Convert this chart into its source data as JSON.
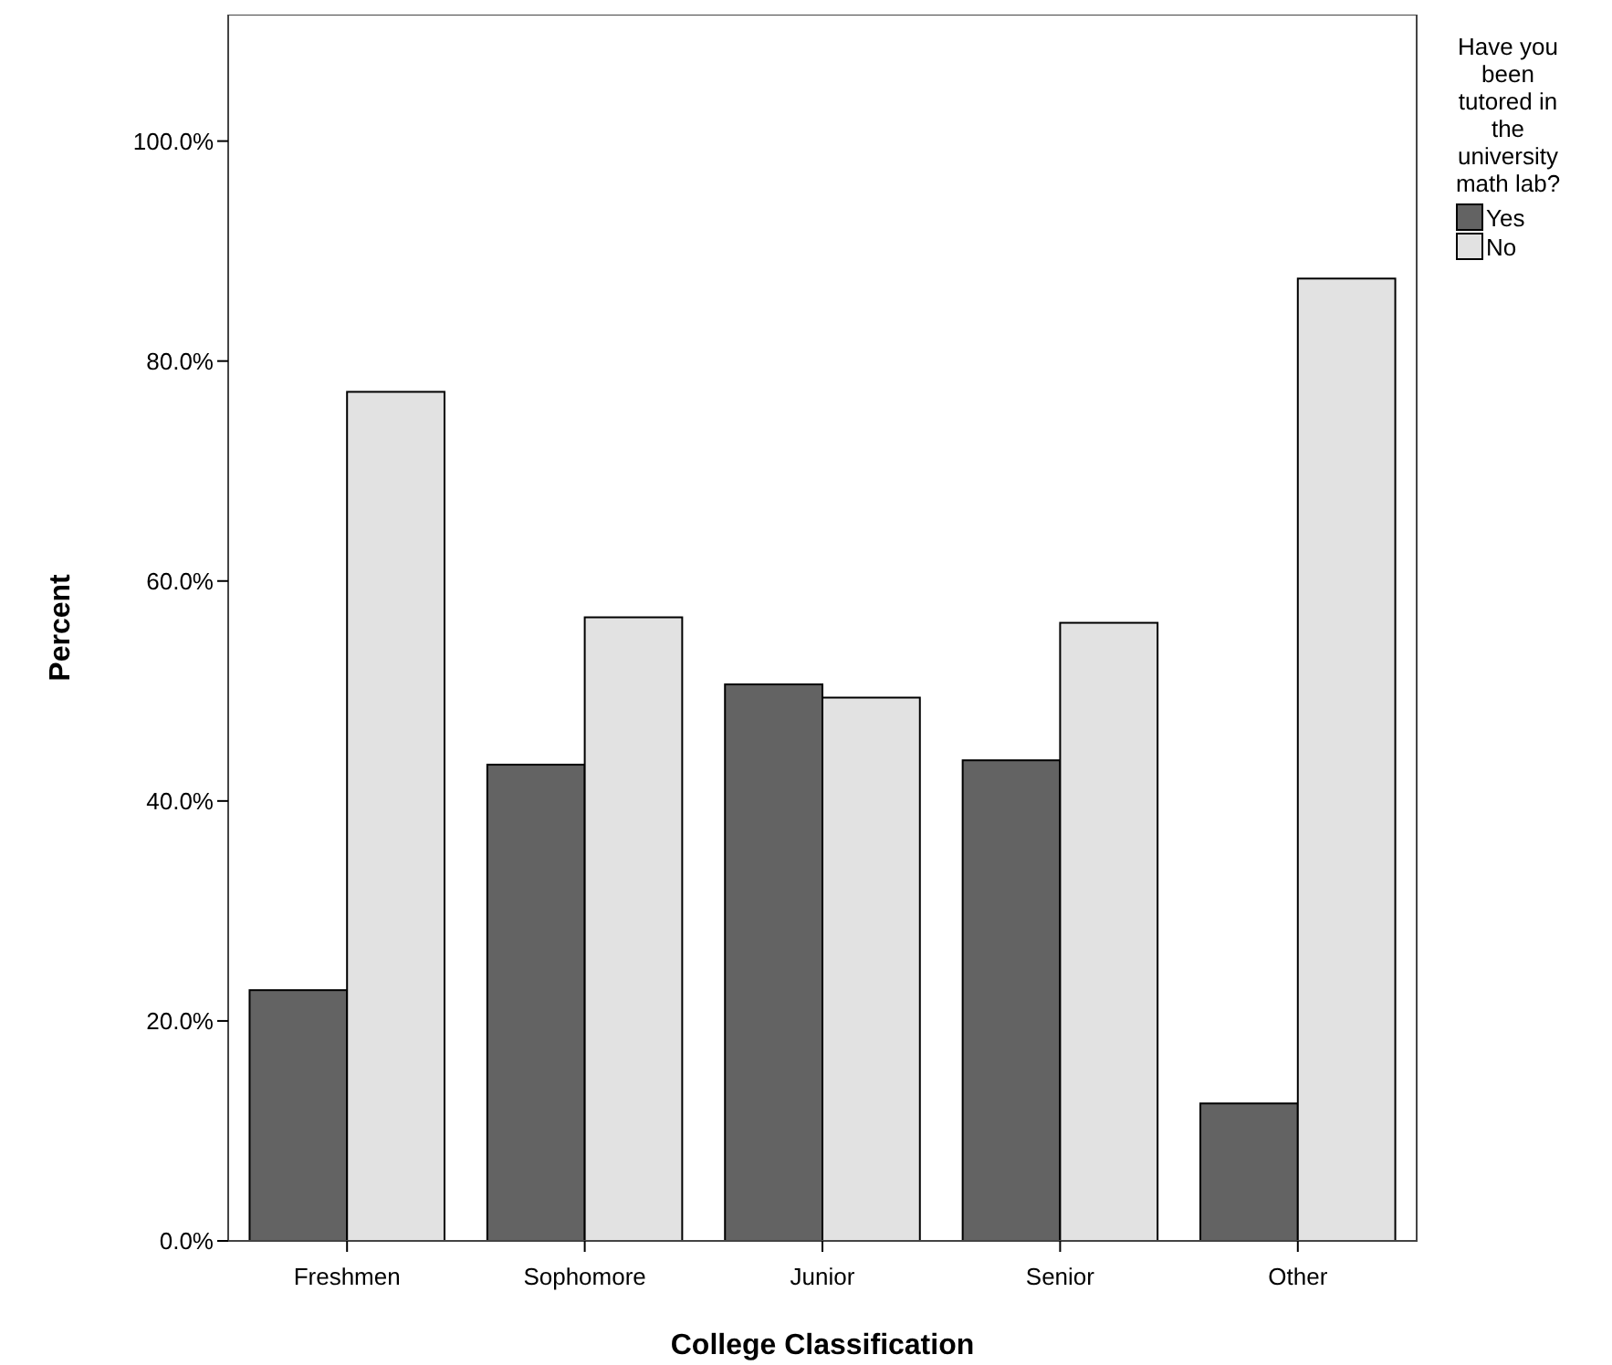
{
  "chart_data": {
    "type": "bar",
    "xlabel": "College Classification",
    "ylabel": "Percent",
    "legend_title": "Have you been tutored in the university math lab?",
    "legend": "right",
    "categories": [
      "Freshmen",
      "Sophomore",
      "Junior",
      "Senior",
      "Other"
    ],
    "series": [
      {
        "name": "Yes",
        "color": "#636363",
        "values": [
          22.8,
          43.3,
          50.6,
          43.7,
          12.5
        ]
      },
      {
        "name": "No",
        "color": "#e2e2e2",
        "values": [
          77.2,
          56.7,
          49.4,
          56.2,
          87.5
        ]
      }
    ],
    "ylim": [
      0,
      111.5
    ],
    "yticks": [
      {
        "value": 0,
        "label": "0.0%"
      },
      {
        "value": 20,
        "label": "20.0%"
      },
      {
        "value": 40,
        "label": "40.0%"
      },
      {
        "value": 60,
        "label": "60.0%"
      },
      {
        "value": 80,
        "label": "80.0%"
      },
      {
        "value": 100,
        "label": "100.0%"
      }
    ],
    "grid": false
  }
}
